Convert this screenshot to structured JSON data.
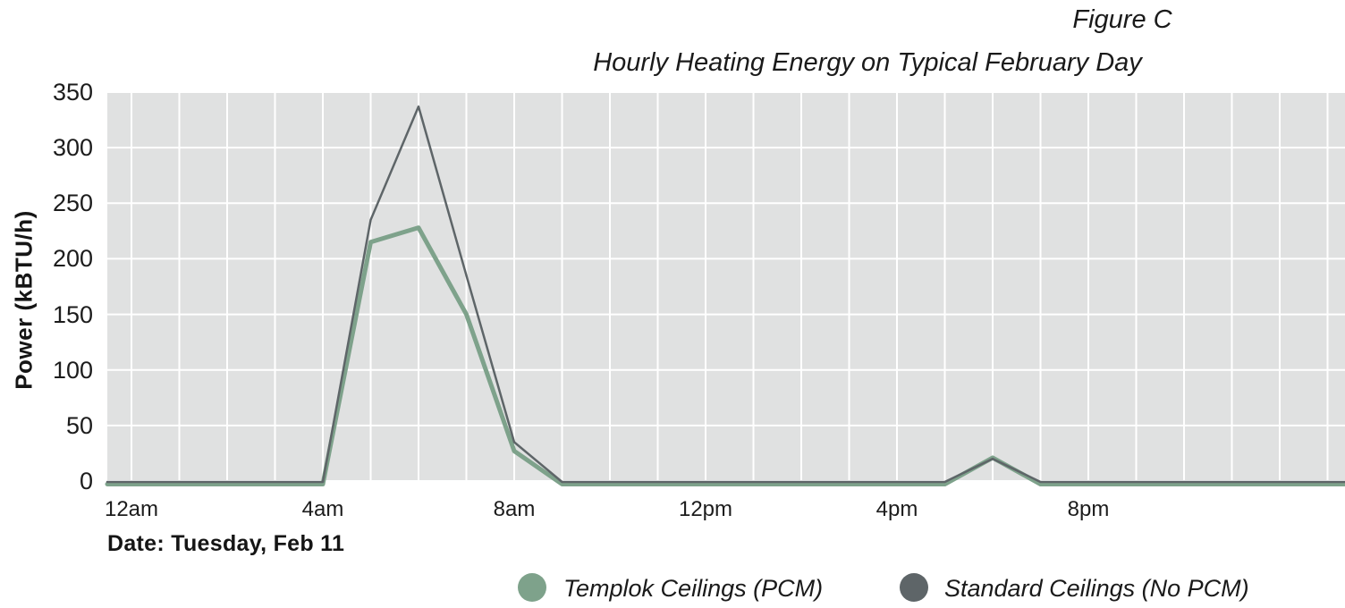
{
  "figure": {
    "label": "Figure C",
    "date_note": "Date: Tuesday, Feb 11"
  },
  "colors": {
    "plot_background": "#E0E1E1",
    "gridline": "#FFFFFF",
    "text": "#1A1A1A",
    "templok_green": "#7EA28B",
    "standard_gray": "#5E6568"
  },
  "chart_data": {
    "type": "line",
    "title": "Hourly Heating Energy on Typical February Day",
    "xlabel": "",
    "ylabel": "Power (kBTU/h)",
    "ylim": [
      0,
      350
    ],
    "yticks": [
      0,
      50,
      100,
      150,
      200,
      250,
      300,
      350
    ],
    "grid": "on (white lines, hourly vertical, 50-unit horizontal, light gray plot background)",
    "legend_position": "bottom-center",
    "x_hours": [
      0,
      1,
      2,
      3,
      4,
      5,
      6,
      7,
      8,
      9,
      10,
      11,
      12,
      13,
      14,
      15,
      16,
      17,
      18,
      19,
      20,
      21,
      22,
      23
    ],
    "xticks": [
      {
        "hour": 0,
        "label": "12am"
      },
      {
        "hour": 4,
        "label": "4am"
      },
      {
        "hour": 8,
        "label": "8am"
      },
      {
        "hour": 12,
        "label": "12pm"
      },
      {
        "hour": 16,
        "label": "4pm"
      },
      {
        "hour": 20,
        "label": "8pm"
      }
    ],
    "series": [
      {
        "name": "Templok Ceilings (PCM)",
        "color": "#7EA28B",
        "line_width": 5,
        "values": [
          0,
          0,
          0,
          0,
          0,
          215,
          228,
          150,
          27,
          0,
          0,
          0,
          0,
          0,
          0,
          0,
          0,
          0,
          21,
          0,
          0,
          0,
          0,
          0
        ]
      },
      {
        "name": "Standard Ceilings (No PCM)",
        "color": "#5E6568",
        "line_width": 2.5,
        "values": [
          0,
          0,
          0,
          0,
          0,
          235,
          337,
          185,
          35,
          0,
          0,
          0,
          0,
          0,
          0,
          0,
          0,
          0,
          20,
          0,
          0,
          0,
          0,
          0
        ]
      }
    ]
  }
}
